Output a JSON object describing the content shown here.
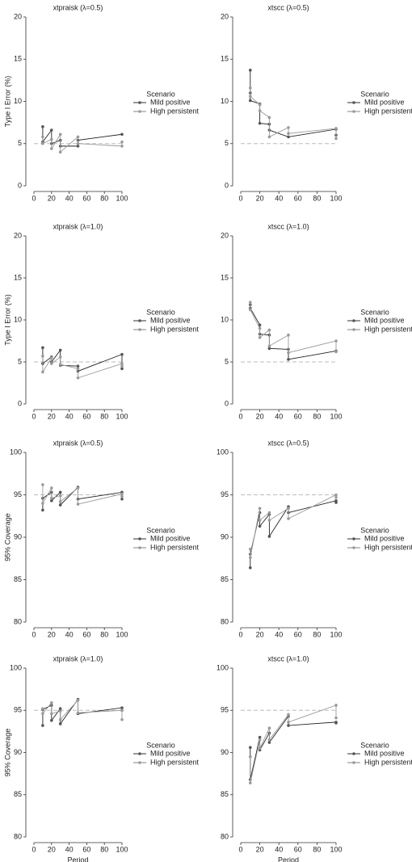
{
  "chart_data": [
    {
      "type": "line",
      "title": "xtpraisk (λ=0.5)",
      "ylabel": "Type I Error (%)",
      "legend_title": "Scenario",
      "xlim": [
        0,
        100
      ],
      "ylim": [
        0,
        20
      ],
      "xticks": [
        0,
        20,
        40,
        60,
        80,
        100
      ],
      "yticks": [
        0,
        5,
        10,
        15,
        20
      ],
      "hline": 5,
      "series": [
        {
          "name": "Mild positive",
          "color": "#555555",
          "x": [
            10,
            10,
            20,
            20,
            30,
            30,
            50,
            50,
            100
          ],
          "values": [
            7.0,
            5.2,
            6.6,
            5.0,
            5.4,
            4.7,
            4.7,
            5.4,
            6.1
          ]
        },
        {
          "name": "High persistent",
          "color": "#9a9a9a",
          "x": [
            10,
            10,
            20,
            20,
            30,
            30,
            50,
            50,
            100,
            100
          ],
          "values": [
            5.8,
            5.0,
            5.5,
            4.4,
            6.1,
            4.0,
            5.8,
            5.0,
            4.7,
            5.2
          ]
        }
      ]
    },
    {
      "type": "line",
      "title": "xtscc (λ=0.5)",
      "legend_title": "Scenario",
      "xlim": [
        0,
        100
      ],
      "ylim": [
        0,
        20
      ],
      "xticks": [
        0,
        20,
        40,
        60,
        80,
        100
      ],
      "yticks": [
        0,
        5,
        10,
        15,
        20
      ],
      "hline": 5,
      "series": [
        {
          "name": "Mild positive",
          "color": "#555555",
          "x": [
            10,
            10,
            10,
            20,
            20,
            30,
            30,
            50,
            100,
            100
          ],
          "values": [
            13.7,
            11.0,
            10.1,
            9.7,
            7.4,
            7.3,
            6.6,
            5.8,
            6.7,
            6.0
          ]
        },
        {
          "name": "High persistent",
          "color": "#9a9a9a",
          "x": [
            10,
            10,
            20,
            20,
            30,
            30,
            50,
            50,
            100,
            100
          ],
          "values": [
            11.6,
            10.6,
            9.6,
            8.9,
            8.1,
            5.8,
            6.9,
            6.2,
            6.8,
            5.6
          ]
        }
      ]
    },
    {
      "type": "line",
      "title": "xtpraisk (λ=1.0)",
      "ylabel": "Type I Error (%)",
      "legend_title": "Scenario",
      "xlim": [
        0,
        100
      ],
      "ylim": [
        0,
        20
      ],
      "xticks": [
        0,
        20,
        40,
        60,
        80,
        100
      ],
      "yticks": [
        0,
        5,
        10,
        15,
        20
      ],
      "hline": 5,
      "series": [
        {
          "name": "Mild positive",
          "color": "#555555",
          "x": [
            10,
            10,
            20,
            20,
            30,
            30,
            50,
            50,
            100,
            100
          ],
          "values": [
            6.7,
            4.8,
            5.6,
            5.0,
            6.4,
            4.6,
            4.5,
            3.9,
            5.9,
            4.2
          ]
        },
        {
          "name": "High persistent",
          "color": "#9a9a9a",
          "x": [
            10,
            10,
            20,
            20,
            30,
            30,
            50,
            50,
            100,
            100
          ],
          "values": [
            5.7,
            3.8,
            5.5,
            4.8,
            5.6,
            4.7,
            4.2,
            3.1,
            4.8,
            4.5
          ]
        }
      ]
    },
    {
      "type": "line",
      "title": "xtscc (λ=1.0)",
      "legend_title": "Scenario",
      "xlim": [
        0,
        100
      ],
      "ylim": [
        0,
        20
      ],
      "xticks": [
        0,
        20,
        40,
        60,
        80,
        100
      ],
      "yticks": [
        0,
        5,
        10,
        15,
        20
      ],
      "hline": 5,
      "series": [
        {
          "name": "Mild positive",
          "color": "#555555",
          "x": [
            10,
            10,
            20,
            20,
            30,
            30,
            50,
            50,
            100
          ],
          "values": [
            11.8,
            11.4,
            9.4,
            8.3,
            8.2,
            6.6,
            6.5,
            5.3,
            6.3
          ]
        },
        {
          "name": "High persistent",
          "color": "#9a9a9a",
          "x": [
            10,
            10,
            20,
            20,
            30,
            30,
            50,
            50,
            100,
            100
          ],
          "values": [
            12.1,
            11.2,
            9.0,
            7.9,
            8.8,
            6.9,
            8.2,
            6.1,
            7.5,
            6.2
          ]
        }
      ]
    },
    {
      "type": "line",
      "title": "xtpraisk (λ=0.5)",
      "ylabel": "95% Coverage",
      "legend_title": "Scenario",
      "xlim": [
        0,
        100
      ],
      "ylim": [
        80,
        100
      ],
      "xticks": [
        0,
        20,
        40,
        60,
        80,
        100
      ],
      "yticks": [
        80,
        85,
        90,
        95,
        100
      ],
      "hline": 95,
      "series": [
        {
          "name": "Mild positive",
          "color": "#555555",
          "x": [
            10,
            10,
            20,
            20,
            30,
            30,
            50,
            50,
            100,
            100
          ],
          "values": [
            93.2,
            94.6,
            95.3,
            94.3,
            95.3,
            93.8,
            95.9,
            94.5,
            95.3,
            94.5
          ]
        },
        {
          "name": "High persistent",
          "color": "#9a9a9a",
          "x": [
            10,
            10,
            20,
            20,
            30,
            30,
            50,
            50,
            100,
            100
          ],
          "values": [
            96.2,
            94.0,
            95.8,
            94.6,
            94.9,
            94.2,
            95.8,
            93.9,
            95.1,
            94.8
          ]
        }
      ]
    },
    {
      "type": "line",
      "title": "xtscc (λ=0.5)",
      "legend_title": "Scenario",
      "xlim": [
        0,
        100
      ],
      "ylim": [
        80,
        100
      ],
      "xticks": [
        0,
        20,
        40,
        60,
        80,
        100
      ],
      "yticks": [
        80,
        85,
        90,
        95,
        100
      ],
      "hline": 95,
      "series": [
        {
          "name": "Mild positive",
          "color": "#555555",
          "x": [
            10,
            10,
            20,
            20,
            30,
            30,
            50,
            50,
            100,
            100
          ],
          "values": [
            86.4,
            88.0,
            92.9,
            91.3,
            92.7,
            90.1,
            93.6,
            92.9,
            94.3,
            94.1
          ]
        },
        {
          "name": "High persistent",
          "color": "#9a9a9a",
          "x": [
            10,
            10,
            20,
            20,
            30,
            30,
            50,
            50,
            100,
            100
          ],
          "values": [
            88.6,
            87.6,
            93.4,
            92.0,
            92.9,
            92.0,
            93.4,
            92.2,
            95.0,
            94.7
          ]
        }
      ]
    },
    {
      "type": "line",
      "title": "xtpraisk (λ=1.0)",
      "ylabel": "95% Coverage",
      "xlabel": "Period",
      "legend_title": "Scenario",
      "xlim": [
        0,
        100
      ],
      "ylim": [
        80,
        100
      ],
      "xticks": [
        0,
        20,
        40,
        60,
        80,
        100
      ],
      "yticks": [
        80,
        85,
        90,
        95,
        100
      ],
      "hline": 95,
      "series": [
        {
          "name": "Mild positive",
          "color": "#555555",
          "x": [
            10,
            10,
            20,
            20,
            30,
            30,
            50,
            50,
            100,
            100
          ],
          "values": [
            93.2,
            95.1,
            95.6,
            93.8,
            95.2,
            93.4,
            96.3,
            94.6,
            95.3,
            95.0
          ]
        },
        {
          "name": "High persistent",
          "color": "#9a9a9a",
          "x": [
            10,
            10,
            20,
            20,
            30,
            30,
            50,
            50,
            100,
            100
          ],
          "values": [
            95.2,
            94.6,
            95.9,
            94.6,
            94.9,
            93.9,
            96.2,
            94.7,
            95.0,
            93.9
          ]
        }
      ]
    },
    {
      "type": "line",
      "title": "xtscc (λ=1.0)",
      "xlabel": "Period",
      "legend_title": "Scenario",
      "xlim": [
        0,
        100
      ],
      "ylim": [
        80,
        100
      ],
      "xticks": [
        0,
        20,
        40,
        60,
        80,
        100
      ],
      "yticks": [
        80,
        85,
        90,
        95,
        100
      ],
      "hline": 95,
      "series": [
        {
          "name": "Mild positive",
          "color": "#555555",
          "x": [
            10,
            10,
            20,
            20,
            30,
            30,
            50,
            50,
            100,
            100
          ],
          "values": [
            90.6,
            86.8,
            91.8,
            90.3,
            92.3,
            91.2,
            94.3,
            93.2,
            93.6,
            93.5
          ]
        },
        {
          "name": "High persistent",
          "color": "#9a9a9a",
          "x": [
            10,
            10,
            20,
            20,
            30,
            30,
            50,
            50,
            100,
            100
          ],
          "values": [
            89.5,
            86.4,
            91.5,
            90.5,
            92.9,
            91.5,
            94.5,
            93.6,
            95.6,
            94.1
          ]
        }
      ]
    }
  ]
}
